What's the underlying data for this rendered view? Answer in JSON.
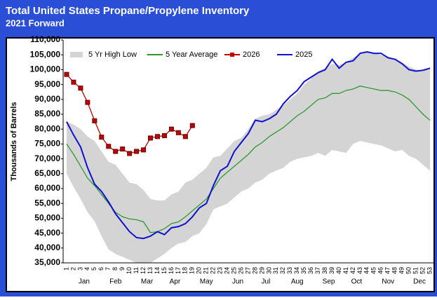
{
  "chart_data": {
    "type": "line",
    "title": "Total United States Propane/Propylene Inventory",
    "subtitle": "2021 Forward",
    "y_label": "Thousands of Barrels",
    "categories": [
      "1",
      "2",
      "3",
      "4",
      "5",
      "6",
      "7",
      "8",
      "9",
      "10",
      "11",
      "12",
      "13",
      "14",
      "15",
      "16",
      "17",
      "18",
      "19",
      "20",
      "21",
      "22",
      "23",
      "24",
      "25",
      "26",
      "27",
      "28",
      "29",
      "30",
      "31",
      "32",
      "33",
      "34",
      "35",
      "36",
      "37",
      "38",
      "39",
      "40",
      "41",
      "42",
      "43",
      "44",
      "45",
      "46",
      "47",
      "48",
      "49",
      "50",
      "51",
      "52",
      "53"
    ],
    "months": [
      "Jan",
      "Feb",
      "Mar",
      "Apr",
      "May",
      "Jun",
      "Jul",
      "Aug",
      "Sep",
      "Oct",
      "Nov",
      "Dec"
    ],
    "ylim": [
      35000,
      110000
    ],
    "yticks": [
      {
        "value": 35000,
        "label": "35,000"
      },
      {
        "value": 40000,
        "label": "40,000"
      },
      {
        "value": 45000,
        "label": "45,000"
      },
      {
        "value": 50000,
        "label": "50,000"
      },
      {
        "value": 55000,
        "label": "55,000"
      },
      {
        "value": 60000,
        "label": "60,000"
      },
      {
        "value": 65000,
        "label": "65,000"
      },
      {
        "value": 70000,
        "label": "70,000"
      },
      {
        "value": 75000,
        "label": "75,000"
      },
      {
        "value": 80000,
        "label": "80,000"
      },
      {
        "value": 85000,
        "label": "85,000"
      },
      {
        "value": 90000,
        "label": "90,000"
      },
      {
        "value": 95000,
        "label": "95,000"
      },
      {
        "value": 100000,
        "label": "100,000"
      },
      {
        "value": 105000,
        "label": "105,000"
      },
      {
        "value": 110000,
        "label": "110,000"
      }
    ],
    "series": [
      {
        "name": "5 Yr High Low",
        "kind": "band",
        "color": "#d4d4d4",
        "high": [
          82500,
          81500,
          80000,
          77500,
          76000,
          72500,
          69000,
          68000,
          65000,
          62000,
          61500,
          59500,
          56500,
          56000,
          56000,
          58000,
          59000,
          62000,
          63000,
          65000,
          67000,
          70500,
          71000,
          73500,
          76000,
          77000,
          80000,
          83500,
          84500,
          85000,
          86500,
          88000,
          90000,
          92000,
          95000,
          97000,
          99500,
          100500,
          102000,
          101500,
          102500,
          104000,
          105500,
          106000,
          105500,
          105000,
          104500,
          103500,
          102500,
          101000,
          100000,
          99500,
          100500
        ],
        "low": [
          65000,
          60500,
          56500,
          52000,
          49000,
          44000,
          39500,
          38000,
          37000,
          36000,
          35000,
          35000,
          35000,
          36500,
          38000,
          40000,
          41500,
          42000,
          44000,
          45000,
          48000,
          53000,
          54000,
          55000,
          57000,
          59000,
          60000,
          62000,
          63000,
          65000,
          66000,
          67000,
          69000,
          70000,
          70500,
          71000,
          72000,
          71000,
          73000,
          72500,
          72000,
          75000,
          76000,
          75500,
          75000,
          74500,
          73500,
          72500,
          73000,
          71000,
          70000,
          68000,
          66000
        ]
      },
      {
        "name": "5 Year Average",
        "color": "#2e9a2e",
        "marker": false,
        "values": [
          75000,
          71500,
          67500,
          63500,
          61000,
          58000,
          55000,
          52000,
          50500,
          49800,
          49500,
          48800,
          45200,
          45500,
          46500,
          48200,
          48800,
          50500,
          52500,
          54500,
          56500,
          60000,
          63500,
          65500,
          67500,
          69500,
          71500,
          74000,
          75500,
          77500,
          79000,
          80500,
          82500,
          84500,
          86000,
          88000,
          90000,
          90500,
          92000,
          92000,
          93000,
          93500,
          94500,
          94000,
          93500,
          93000,
          93000,
          92500,
          91500,
          90000,
          87500,
          85000,
          83000
        ]
      },
      {
        "name": "2026",
        "color": "#c00000",
        "marker": true,
        "values": [
          98400,
          95800,
          93800,
          89000,
          82800,
          77300,
          74200,
          72500,
          73300,
          71800,
          72500,
          73000,
          77000,
          77500,
          77800,
          80000,
          78800,
          77500,
          81200,
          null,
          null,
          null,
          null,
          null,
          null,
          null,
          null,
          null,
          null,
          null,
          null,
          null,
          null,
          null,
          null,
          null,
          null,
          null,
          null,
          null,
          null,
          null,
          null,
          null,
          null,
          null,
          null,
          null,
          null,
          null,
          null,
          null,
          null
        ]
      },
      {
        "name": "2025",
        "color": "#1010d0",
        "marker": false,
        "values": [
          82500,
          78000,
          74000,
          67000,
          61500,
          59000,
          55500,
          51500,
          48500,
          45500,
          43500,
          43200,
          44000,
          45500,
          44500,
          46800,
          47200,
          48200,
          50500,
          53500,
          55000,
          61000,
          66000,
          67500,
          72500,
          75500,
          78500,
          83000,
          82500,
          83500,
          85000,
          88500,
          91000,
          93000,
          96000,
          97500,
          99000,
          100000,
          103500,
          100500,
          102500,
          103000,
          105500,
          106000,
          105500,
          105500,
          104000,
          103500,
          102000,
          100000,
          99500,
          99800,
          100500
        ]
      }
    ]
  }
}
